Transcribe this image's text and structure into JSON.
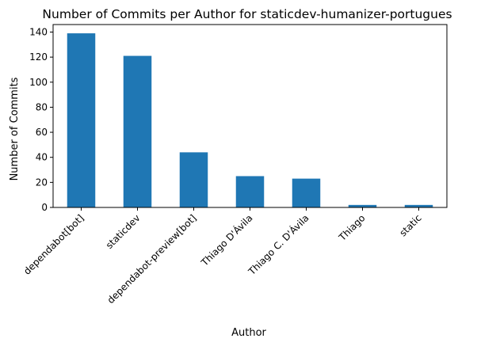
{
  "chart_data": {
    "type": "bar",
    "title": "Number of Commits per Author for staticdev-humanizer-portugues",
    "xlabel": "Author",
    "ylabel": "Number of Commits",
    "categories": [
      "dependabot[bot]",
      "staticdev",
      "dependabot-preview[bot]",
      "Thiago D'Ávila",
      "Thiago C. D'Ávila",
      "Thiago",
      "static"
    ],
    "values": [
      139,
      121,
      44,
      25,
      23,
      2,
      2
    ],
    "ylim": [
      0,
      146
    ],
    "yticks": [
      0,
      20,
      40,
      60,
      80,
      100,
      120,
      140
    ],
    "grid": false,
    "legend": "none",
    "colors": {
      "bar": "#1f77b4",
      "axis": "#000000",
      "background": "#ffffff"
    }
  }
}
